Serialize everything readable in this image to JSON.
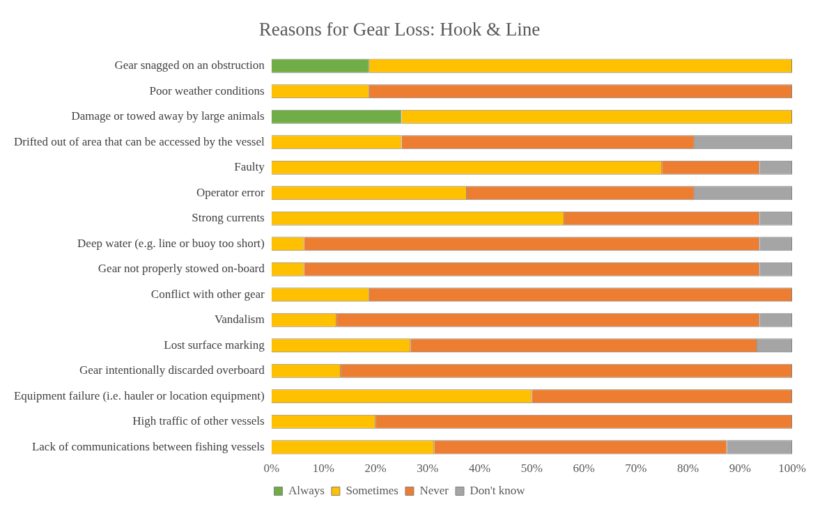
{
  "chart_data": {
    "type": "bar",
    "orientation": "horizontal",
    "stacked": true,
    "title": "Reasons for Gear Loss: Hook & Line",
    "categories": [
      "Gear snagged on an obstruction",
      "Poor weather conditions",
      "Damage or towed away by large animals",
      "Drifted out of area that can be accessed by the vessel",
      "Faulty",
      "Operator error",
      "Strong currents",
      "Deep water (e.g. line or buoy too short)",
      "Gear not properly stowed on-board",
      "Conflict with other gear",
      "Vandalism",
      "Lost surface marking",
      "Gear intentionally discarded overboard",
      "Equipment failure (i.e. hauler or location equipment)",
      "High traffic of other vessels",
      "Lack of communications between fishing vessels"
    ],
    "series": [
      {
        "name": "Always",
        "color": "#70ad47",
        "values": [
          18.75,
          0,
          25,
          0,
          0,
          0,
          0,
          0,
          0,
          0,
          0,
          0,
          0,
          0,
          0,
          0
        ]
      },
      {
        "name": "Sometimes",
        "color": "#ffc000",
        "values": [
          81.25,
          18.75,
          75,
          25,
          75,
          37.5,
          56.25,
          6.25,
          6.25,
          18.75,
          12.5,
          26.7,
          13.3,
          50,
          20,
          31.25
        ]
      },
      {
        "name": "Never",
        "color": "#ed7d31",
        "values": [
          0,
          81.25,
          0,
          56.25,
          18.75,
          43.75,
          37.5,
          87.5,
          87.5,
          81.25,
          81.25,
          66.6,
          86.7,
          50,
          80,
          56.25
        ]
      },
      {
        "name": "Don't know",
        "color": "#a5a5a5",
        "values": [
          0,
          0,
          0,
          18.75,
          6.25,
          18.75,
          6.25,
          6.25,
          6.25,
          0,
          6.25,
          6.7,
          0,
          0,
          0,
          12.5
        ]
      }
    ],
    "xlim": [
      0,
      100
    ],
    "xticks": [
      {
        "value": 0,
        "label": "0%"
      },
      {
        "value": 10,
        "label": "10%"
      },
      {
        "value": 20,
        "label": "20%"
      },
      {
        "value": 30,
        "label": "30%"
      },
      {
        "value": 40,
        "label": "40%"
      },
      {
        "value": 50,
        "label": "50%"
      },
      {
        "value": 60,
        "label": "60%"
      },
      {
        "value": 70,
        "label": "70%"
      },
      {
        "value": 80,
        "label": "80%"
      },
      {
        "value": 90,
        "label": "90%"
      },
      {
        "value": 100,
        "label": "100%"
      }
    ],
    "grid": false,
    "legend": "bottom"
  }
}
